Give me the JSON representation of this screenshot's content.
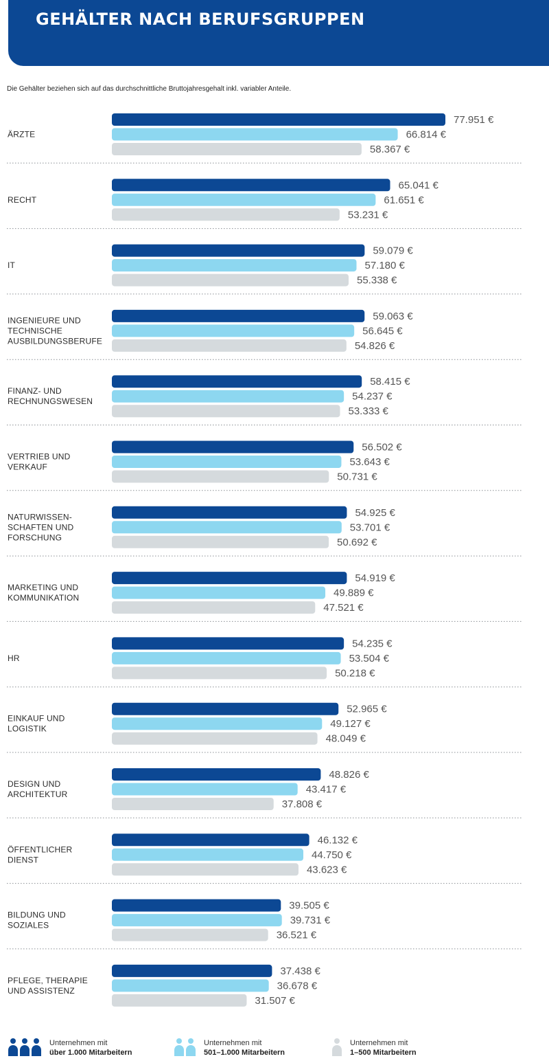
{
  "header": {
    "title": "GEHÄLTER NACH BERUFSGRUPPEN"
  },
  "subtitle": "Die Gehälter beziehen sich auf das durchschnittliche Bruttojahresgehalt inkl. variabler Anteile.",
  "colors": {
    "header_bg": "#0c4894",
    "series_large": "#0c4894",
    "series_mid": "#8dd7f0",
    "series_small": "#d5dadd"
  },
  "legend": [
    {
      "line1": "Unternehmen mit",
      "line2": "über 1.000 Mitarbeitern",
      "icon": "people-icon-dark-blue"
    },
    {
      "line1": "Unternehmen mit",
      "line2": "501–1.000 Mitarbeitern",
      "icon": "people-icon-light-blue"
    },
    {
      "line1": "Unternehmen mit",
      "line2": "1–500 Mitarbeitern",
      "icon": "person-icon-grey"
    }
  ],
  "chart_data": {
    "type": "bar",
    "orientation": "horizontal",
    "categories": [
      [
        "ÄRZTE"
      ],
      [
        "RECHT"
      ],
      [
        "IT"
      ],
      [
        "INGENIEURE UND",
        "TECHNISCHE",
        "AUSBILDUNGSBERUFE"
      ],
      [
        "FINANZ- UND",
        "RECHNUNGSWESEN"
      ],
      [
        "VERTRIEB UND",
        "VERKAUF"
      ],
      [
        "NATURWISSEN-",
        "SCHAFTEN UND",
        "FORSCHUNG"
      ],
      [
        "MARKETING UND",
        "KOMMUNIKATION"
      ],
      [
        "HR"
      ],
      [
        "EINKAUF UND",
        "LOGISTIK"
      ],
      [
        "DESIGN UND",
        "ARCHITEKTUR"
      ],
      [
        "ÖFFENTLICHER",
        "DIENST"
      ],
      [
        "BILDUNG UND",
        "SOZIALES"
      ],
      [
        "PFLEGE, THERAPIE",
        "UND ASSISTENZ"
      ]
    ],
    "series": [
      {
        "name": "Unternehmen mit über 1.000 Mitarbeitern",
        "color": "#0c4894",
        "values": [
          77951,
          65041,
          59079,
          59063,
          58415,
          56502,
          54925,
          54919,
          54235,
          52965,
          48826,
          46132,
          39505,
          37438
        ],
        "labels": [
          "77.951 €",
          "65.041 €",
          "59.079 €",
          "59.063 €",
          "58.415 €",
          "56.502 €",
          "54.925 €",
          "54.919 €",
          "54.235 €",
          "52.965 €",
          "48.826 €",
          "46.132 €",
          "39.505 €",
          "37.438 €"
        ]
      },
      {
        "name": "Unternehmen mit 501–1.000 Mitarbeitern",
        "color": "#8dd7f0",
        "values": [
          66814,
          61651,
          57180,
          56645,
          54237,
          53643,
          53701,
          49889,
          53504,
          49127,
          43417,
          44750,
          39731,
          36678
        ],
        "labels": [
          "66.814 €",
          "61.651 €",
          "57.180 €",
          "56.645 €",
          "54.237 €",
          "53.643 €",
          "53.701 €",
          "49.889 €",
          "53.504 €",
          "49.127 €",
          "43.417 €",
          "44.750 €",
          "39.731 €",
          "36.678 €"
        ]
      },
      {
        "name": "Unternehmen mit 1–500 Mitarbeitern",
        "color": "#d5dadd",
        "values": [
          58367,
          53231,
          55338,
          54826,
          53333,
          50731,
          50692,
          47521,
          50218,
          48049,
          37808,
          43623,
          36521,
          31507
        ],
        "labels": [
          "58.367 €",
          "53.231 €",
          "55.338 €",
          "54.826 €",
          "53.333 €",
          "50.731 €",
          "50.692 €",
          "47.521 €",
          "50.218 €",
          "48.049 €",
          "37.808 €",
          "43.623 €",
          "36.521 €",
          "31.507 €"
        ]
      }
    ],
    "xlim": [
      0,
      77951
    ],
    "grid": false,
    "separators": "dotted",
    "legend_position": "bottom"
  }
}
